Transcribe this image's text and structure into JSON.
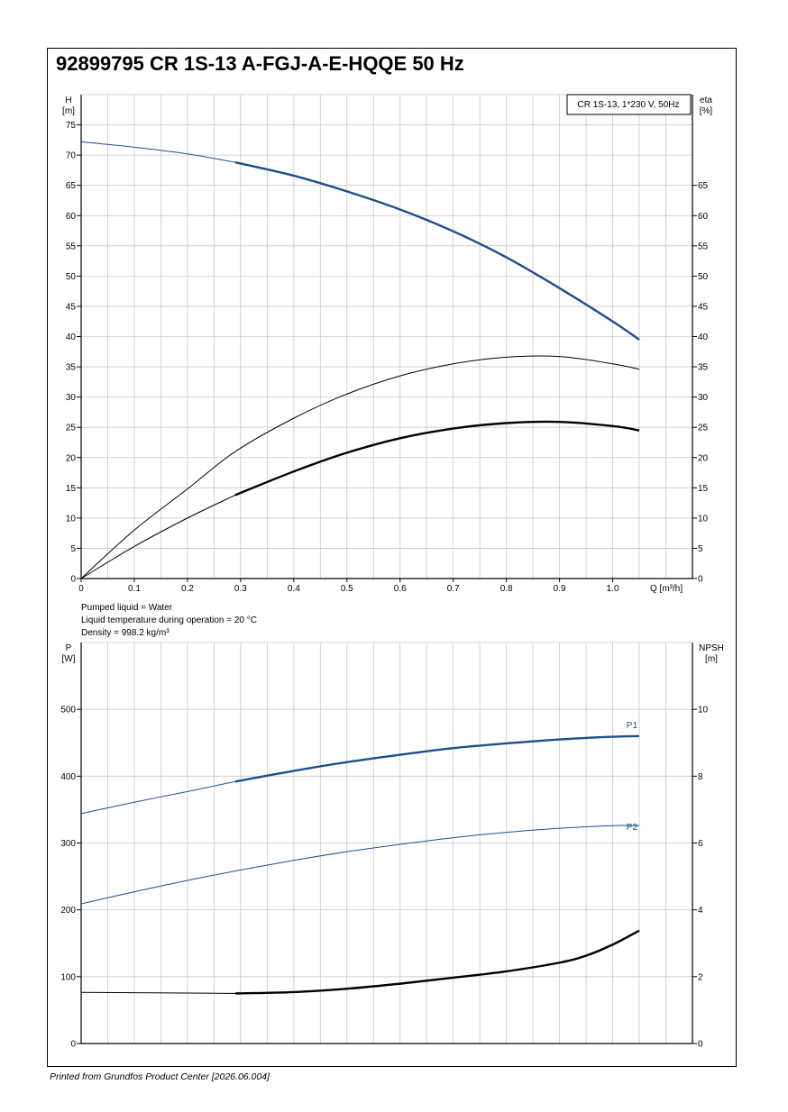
{
  "title": "92899795 CR 1S-13 A-FGJ-A-E-HQQE 50 Hz",
  "liquid_info": [
    "Pumped liquid = Water",
    "Liquid temperature during operation = 20 °C",
    "Density = 998.2 kg/m³"
  ],
  "footer": "Printed from Grundfos Product Center [2026.06.004]",
  "colors": {
    "blue": "#1f4e8c",
    "black": "#000000",
    "grid": "#c8c8c8"
  },
  "chart_data": [
    {
      "type": "line",
      "legend_box": "CR 1S-13, 1*230 V, 50Hz",
      "y_left_label": "H",
      "y_left_unit": "[m]",
      "y_right_label": "eta",
      "y_right_unit": "[%]",
      "x_label": "Q [m³/h]",
      "xlim": [
        0,
        1.15
      ],
      "ylim": [
        0,
        80
      ],
      "x_ticks": [
        "0",
        "0.1",
        "0.2",
        "0.3",
        "0.4",
        "0.5",
        "0.6",
        "0.7",
        "0.8",
        "0.9",
        "1.0"
      ],
      "y_left_ticks": [
        "0",
        "5",
        "10",
        "15",
        "20",
        "25",
        "30",
        "35",
        "40",
        "45",
        "50",
        "55",
        "60",
        "65",
        "70",
        "75"
      ],
      "y_right_ticks": [
        "0",
        "5",
        "10",
        "15",
        "20",
        "25",
        "30",
        "35",
        "40",
        "45",
        "50",
        "55",
        "60",
        "65"
      ],
      "series": [
        {
          "color": "blue",
          "x": [
            0,
            0.1,
            0.2,
            0.29,
            0.4,
            0.5,
            0.6,
            0.7,
            0.8,
            0.9,
            1.0,
            1.05
          ],
          "y": [
            72.2,
            71.3,
            70.2,
            68.8,
            66.6,
            64.0,
            61.0,
            57.4,
            53.1,
            48.0,
            42.5,
            39.5
          ],
          "bold_from": 0.29
        },
        {
          "color": "black",
          "x": [
            0,
            0.1,
            0.2,
            0.29,
            0.4,
            0.5,
            0.6,
            0.7,
            0.8,
            0.9,
            1.0,
            1.05
          ],
          "y": [
            0,
            8.0,
            14.8,
            21.0,
            26.5,
            30.5,
            33.5,
            35.5,
            36.6,
            36.7,
            35.5,
            34.6
          ],
          "bold_from": null
        },
        {
          "color": "black",
          "x": [
            0,
            0.1,
            0.2,
            0.29,
            0.4,
            0.5,
            0.6,
            0.7,
            0.8,
            0.9,
            1.0,
            1.05
          ],
          "y": [
            0,
            5.3,
            10.0,
            13.8,
            17.7,
            20.8,
            23.2,
            24.8,
            25.7,
            25.9,
            25.2,
            24.5
          ],
          "bold_from": 0.29
        }
      ]
    },
    {
      "type": "line",
      "y_left_label": "P",
      "y_left_unit": "[W]",
      "y_right_label": "NPSH",
      "y_right_unit": "[m]",
      "xlim": [
        0,
        1.15
      ],
      "ylim": [
        0,
        600
      ],
      "y_right_lim": [
        0,
        12
      ],
      "y_left_ticks": [
        "0",
        "100",
        "200",
        "300",
        "400",
        "500"
      ],
      "y_right_ticks": [
        "0",
        "2",
        "4",
        "6",
        "8",
        "10"
      ],
      "series": [
        {
          "name": "P1",
          "color": "blue",
          "x": [
            0,
            0.1,
            0.2,
            0.29,
            0.4,
            0.5,
            0.6,
            0.7,
            0.8,
            0.9,
            1.0,
            1.05
          ],
          "y": [
            344,
            361,
            377,
            392,
            408,
            421,
            432,
            442,
            449,
            455,
            459,
            460
          ],
          "bold_from": 0.29,
          "axis": "left"
        },
        {
          "name": "P2",
          "color": "blue",
          "x": [
            0,
            0.1,
            0.2,
            0.29,
            0.4,
            0.5,
            0.6,
            0.7,
            0.8,
            0.9,
            1.0,
            1.05
          ],
          "y": [
            209,
            227,
            244,
            258,
            274,
            287,
            298,
            308,
            316,
            322,
            326,
            326
          ],
          "bold_from": null,
          "axis": "left"
        },
        {
          "color": "black",
          "x": [
            0,
            0.1,
            0.2,
            0.29,
            0.4,
            0.5,
            0.6,
            0.7,
            0.8,
            0.9,
            0.95,
            1.0,
            1.05
          ],
          "y": [
            1.53,
            1.52,
            1.51,
            1.5,
            1.54,
            1.64,
            1.79,
            1.97,
            2.16,
            2.42,
            2.63,
            2.96,
            3.38
          ],
          "bold_from": 0.29,
          "axis": "right"
        }
      ]
    }
  ]
}
